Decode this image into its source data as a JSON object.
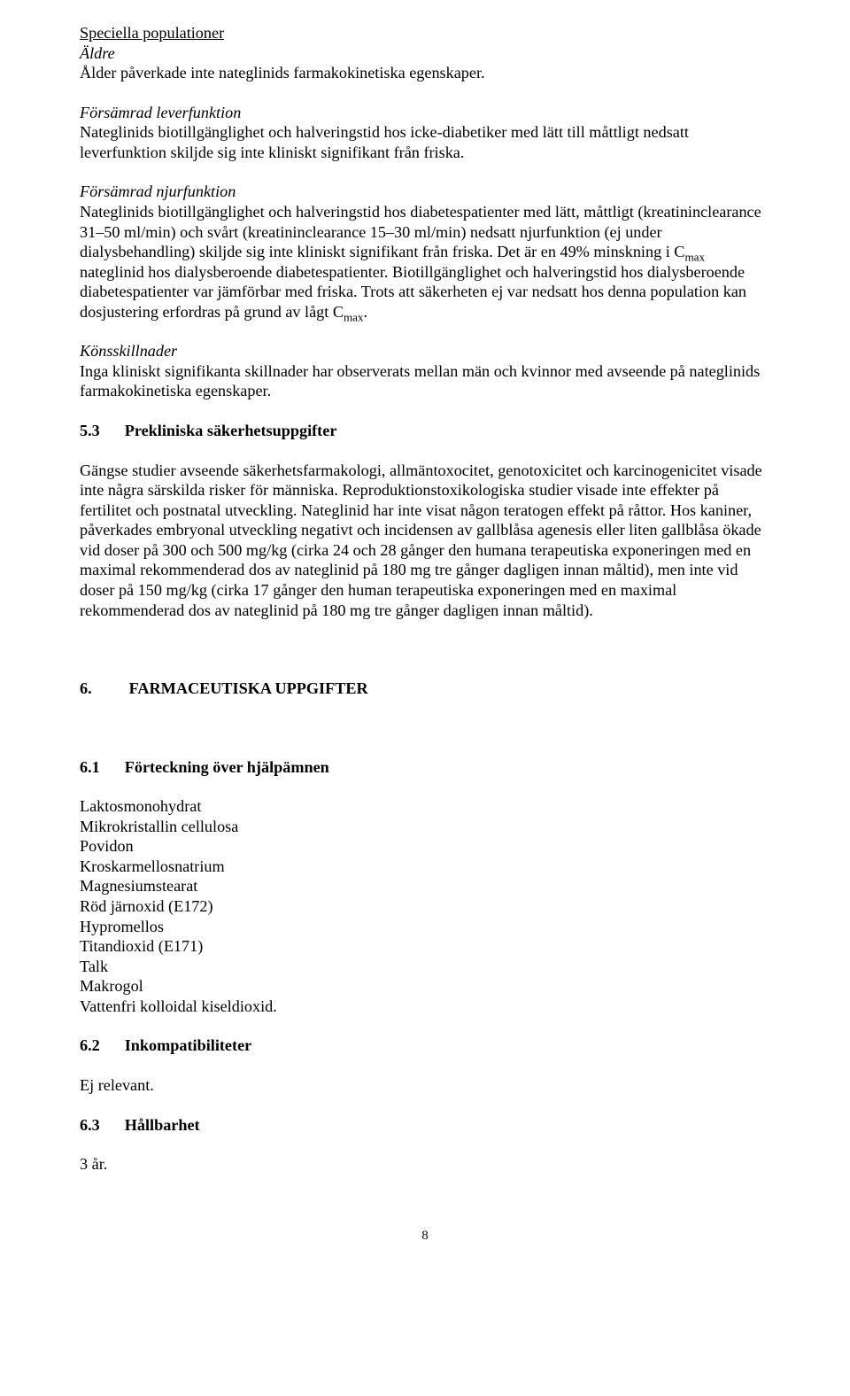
{
  "block_title": "Speciella populationer",
  "elderly_heading": "Äldre",
  "elderly_text": "Ålder påverkade inte nateglinids farmakokinetiska egenskaper.",
  "liver_heading": "Försämrad leverfunktion",
  "liver_text": "Nateglinids biotillgänglighet och halveringstid hos icke-diabetiker med lätt till måttligt nedsatt leverfunktion skiljde sig inte kliniskt signifikant från friska.",
  "renal_heading": "Försämrad njurfunktion",
  "renal_text_pre": "Nateglinids biotillgänglighet och halveringstid hos diabetespatienter med lätt, måttligt (kreatininclearance 31–50 ml/min) och svårt (kreatininclearance 15–30 ml/min) nedsatt njurfunktion (ej under dialysbehandling) skiljde sig inte kliniskt signifikant från friska. Det är en 49% minskning i C",
  "renal_cmax_sub": "max",
  "renal_text_mid": " nateglinid hos dialysberoende diabetespatienter. Biotillgänglighet och halveringstid hos dialysberoende diabetespatienter var jämförbar med friska. Trots att säkerheten ej var nedsatt hos denna population kan dosjustering erfordras på grund av lågt C",
  "renal_text_post": ".",
  "gender_heading": "Könsskillnader",
  "gender_text": "Inga kliniskt signifikanta skillnader har observerats mellan män och kvinnor med avseende på nateglinids farmakokinetiska egenskaper.",
  "sec53_num": "5.3",
  "sec53_title": "Prekliniska säkerhetsuppgifter",
  "sec53_text": "Gängse studier avseende säkerhetsfarmakologi, allmäntoxocitet, genotoxicitet och karcinogenicitet visade inte några särskilda risker för människa. Reproduktionstoxikologiska studier visade inte effekter på fertilitet och postnatal utveckling. Nateglinid har inte visat någon teratogen effekt på råttor. Hos kaniner, påverkades embryonal utveckling negativt och incidensen av gallblåsa agenesis eller liten gallblåsa ökade vid doser på 300 och 500 mg/kg (cirka 24 och 28 gånger den humana terapeutiska exponeringen med en maximal rekommenderad dos av nateglinid på 180 mg tre gånger dagligen innan måltid), men inte vid doser på 150 mg/kg (cirka 17 gånger den human terapeutiska exponeringen med en maximal rekommenderad dos av nateglinid på 180 mg tre gånger dagligen innan måltid).",
  "sec6_num": "6.",
  "sec6_title": "FARMACEUTISKA UPPGIFTER",
  "sec61_num": "6.1",
  "sec61_title": "Förteckning över hjälpämnen",
  "excipients": [
    "Laktosmonohydrat",
    "Mikrokristallin cellulosa",
    "Povidon",
    "Kroskarmellosnatrium",
    "Magnesiumstearat",
    "Röd järnoxid (E172)",
    "Hypromellos",
    "Titandioxid (E171)",
    "Talk",
    "Makrogol",
    "Vattenfri kolloidal kiseldioxid."
  ],
  "sec62_num": "6.2",
  "sec62_title": "Inkompatibiliteter",
  "sec62_text": "Ej relevant.",
  "sec63_num": "6.3",
  "sec63_title": "Hållbarhet",
  "sec63_text": "3 år.",
  "page_number": "8"
}
